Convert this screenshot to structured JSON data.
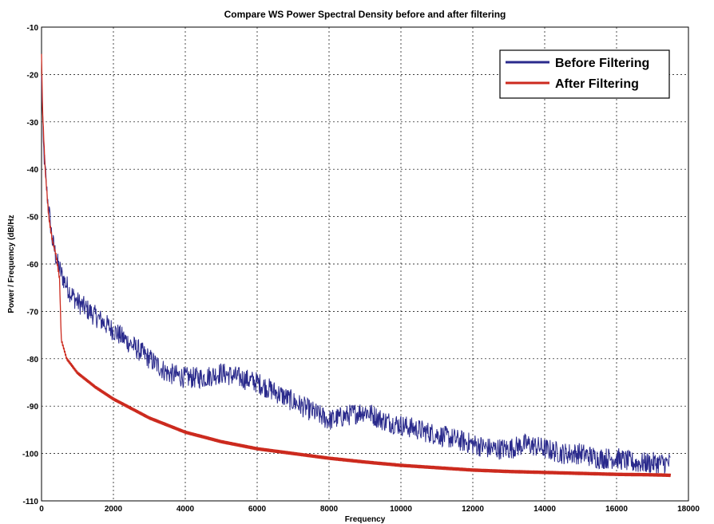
{
  "chart_data": {
    "type": "line",
    "title": "Compare WS Power Spectral Density before and after filtering",
    "xlabel": "Frequency",
    "ylabel": "Power / Frequency (dB/Hz",
    "xlim": [
      0,
      18000
    ],
    "ylim": [
      -110,
      -10
    ],
    "xticks": [
      0,
      2000,
      4000,
      6000,
      8000,
      10000,
      12000,
      14000,
      16000,
      18000
    ],
    "yticks": [
      -10,
      -20,
      -30,
      -40,
      -50,
      -60,
      -70,
      -80,
      -90,
      -100,
      -110
    ],
    "xtick_labels": [
      "0",
      "2000",
      "4000",
      "6000",
      "8000",
      "10000",
      "12000",
      "14000",
      "16000",
      "18000"
    ],
    "ytick_labels": [
      "-10",
      "-20",
      "-30",
      "-40",
      "-50",
      "-60",
      "-70",
      "-80",
      "-90",
      "-100",
      "-110"
    ],
    "grid": true,
    "legend_position": "top-right",
    "series": [
      {
        "name": "Before Filtering",
        "color": "#2a2a8c",
        "x": [
          0,
          50,
          150,
          300,
          450,
          600,
          800,
          1000,
          1500,
          2000,
          2500,
          3000,
          3500,
          4000,
          4500,
          5000,
          5500,
          6000,
          6500,
          7000,
          7500,
          8000,
          8500,
          9000,
          9500,
          10000,
          10500,
          11000,
          11500,
          12000,
          12500,
          13000,
          13500,
          14000,
          14500,
          15000,
          15500,
          16000,
          16500,
          17000,
          17500
        ],
        "values": [
          -21,
          -35,
          -45,
          -55,
          -60,
          -63,
          -66,
          -68,
          -71,
          -74,
          -77,
          -80,
          -83,
          -84,
          -84,
          -83,
          -84,
          -85,
          -87,
          -89,
          -91,
          -93,
          -92,
          -91,
          -93,
          -94,
          -95,
          -96,
          -97,
          -98,
          -99,
          -99,
          -98,
          -99,
          -100,
          -100,
          -101,
          -101,
          -102,
          -102,
          -102
        ],
        "noise": 2.3
      },
      {
        "name": "After Filtering",
        "color": "#cc2a1e",
        "x": [
          0,
          30,
          100,
          200,
          300,
          400,
          500,
          550,
          700,
          1000,
          1500,
          2000,
          2500,
          3000,
          3500,
          4000,
          5000,
          6000,
          7000,
          8000,
          9000,
          10000,
          11000,
          12000,
          13000,
          14000,
          15000,
          16000,
          17000,
          17500
        ],
        "values": [
          -16,
          -28,
          -40,
          -50,
          -55,
          -58,
          -63,
          -76,
          -80,
          -83,
          -86,
          -88.5,
          -90.5,
          -92.5,
          -94,
          -95.5,
          -97.5,
          -99,
          -100,
          -101,
          -101.8,
          -102.5,
          -103,
          -103.5,
          -103.8,
          -104,
          -104.2,
          -104.4,
          -104.5,
          -104.6
        ],
        "noise": 0.7
      }
    ]
  }
}
